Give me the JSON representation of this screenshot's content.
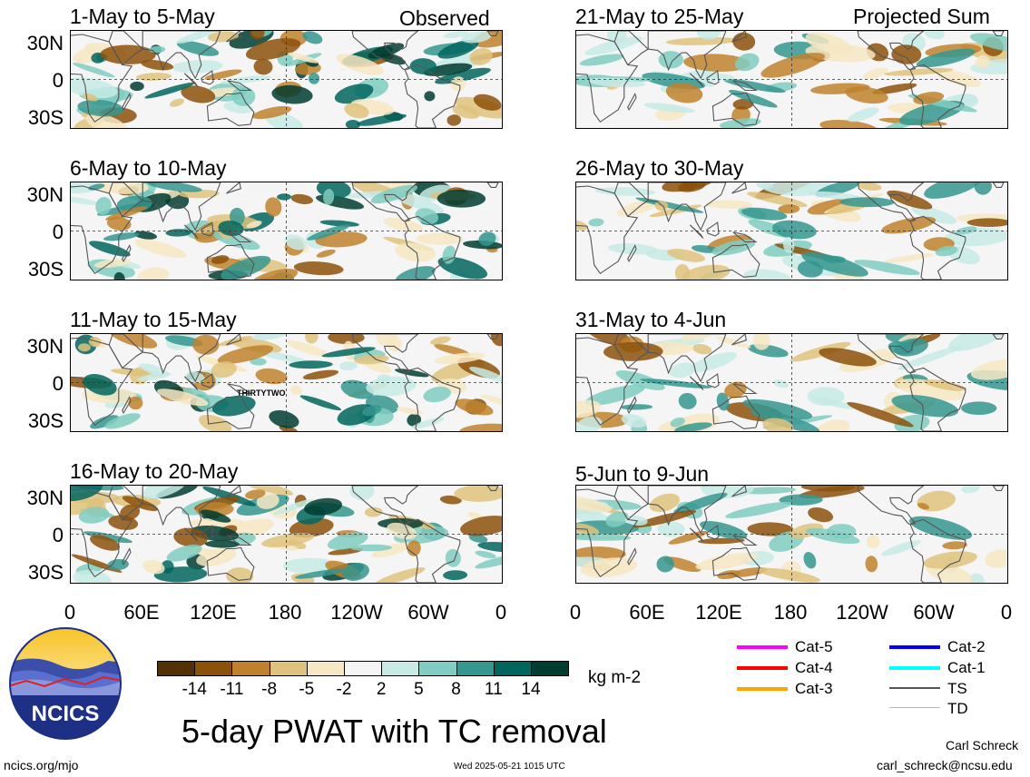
{
  "panels_left": [
    {
      "title": "1-May to 5-May",
      "tag": "Observed"
    },
    {
      "title": "6-May to 10-May",
      "tag": ""
    },
    {
      "title": "11-May to 15-May",
      "tag": "",
      "storm_label": "THIRTYTWO"
    },
    {
      "title": "16-May to 20-May",
      "tag": ""
    }
  ],
  "panels_right": [
    {
      "title": "21-May to 25-May",
      "tag": "Projected Sum"
    },
    {
      "title": "26-May to 30-May",
      "tag": ""
    },
    {
      "title": "31-May to 4-Jun",
      "tag": ""
    },
    {
      "title": "5-Jun to 9-Jun",
      "tag": ""
    }
  ],
  "lat_labels": [
    "30N",
    "0",
    "30S"
  ],
  "lon_labels": [
    "0",
    "60E",
    "120E",
    "180",
    "120W",
    "60W",
    "0"
  ],
  "colorbar": {
    "colors": [
      "#543005",
      "#8c510a",
      "#bf812d",
      "#dfc27d",
      "#f6e8c3",
      "#f5f5f5",
      "#c7eae5",
      "#80cdc1",
      "#35978f",
      "#01665e",
      "#003c30"
    ],
    "labels": [
      "-14",
      "-11",
      "-8",
      "-5",
      "-2",
      "2",
      "5",
      "8",
      "11",
      "14"
    ],
    "units": "kg m-2"
  },
  "tc_legend": [
    {
      "label": "Cat-5",
      "color": "#ff00ff"
    },
    {
      "label": "Cat-4",
      "color": "#ff0000"
    },
    {
      "label": "Cat-3",
      "color": "#ffa500"
    },
    {
      "label": "Cat-2",
      "color": "#0000ff"
    },
    {
      "label": "Cat-1",
      "color": "#00ffff"
    },
    {
      "label": "TS",
      "color": "#555555"
    },
    {
      "label": "TD",
      "color": "#bbbbbb"
    }
  ],
  "logo_text": "NCICS",
  "main_title": "5-day PWAT with TC removal",
  "footer_left": "ncics.org/mjo",
  "footer_center": "Wed 2025-05-21 1015 UTC",
  "author": "Carl Schreck",
  "email": "carl_schreck@ncsu.edu"
}
